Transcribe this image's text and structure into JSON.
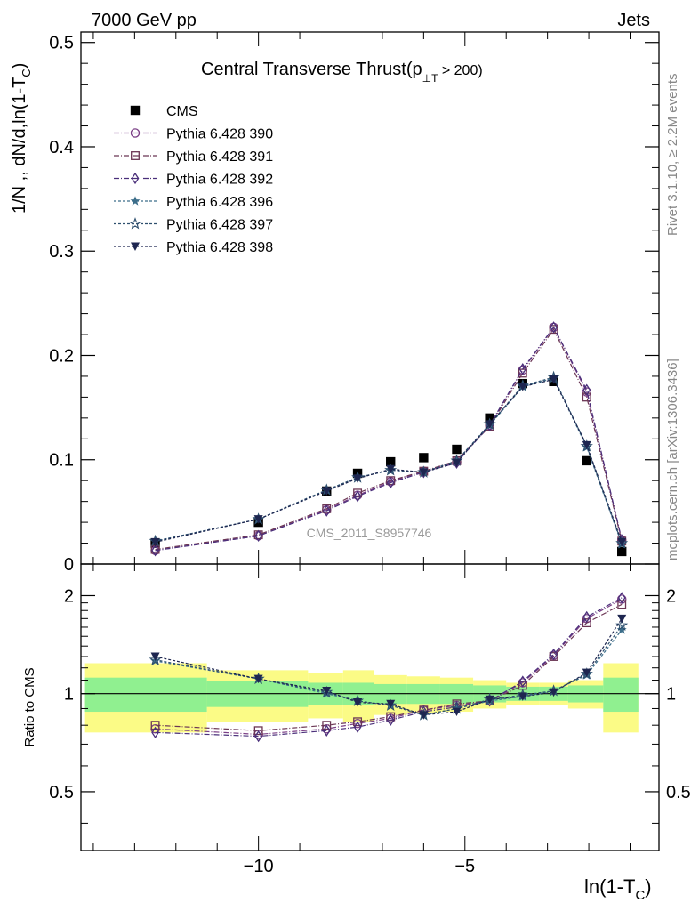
{
  "header": {
    "left": "7000 GeV pp",
    "right": "Jets"
  },
  "side_text": {
    "rivet": "Rivet 3.1.10, ≥ 2.2M events",
    "mcplots": "mcplots.cern.ch [arXiv:1306.3436]"
  },
  "watermark": "CMS_2011_S8957746",
  "chart_data": [
    {
      "type": "scatter",
      "panel": "main",
      "title": "Central Transverse Thrust(p",
      "title_sub": "⊥T",
      "title_tail": " > 200)",
      "ylabel": "1/N ,, dN/d,ln(1-T",
      "ylabel_sub": "C",
      "ylabel_tail": ")",
      "xlim": [
        -14.3,
        -0.3
      ],
      "ylim": [
        0,
        0.51
      ],
      "yticks": [
        0,
        0.1,
        0.2,
        0.3,
        0.4,
        0.5
      ],
      "ytick_labels": [
        "0",
        "0.1",
        "0.2",
        "0.3",
        "0.4",
        "0.5"
      ],
      "x": [
        -12.5,
        -10.0,
        -8.35,
        -7.6,
        -6.8,
        -6.0,
        -5.2,
        -4.4,
        -3.6,
        -2.85,
        -2.05,
        -1.2
      ],
      "legend_placement": "top-left",
      "series": [
        {
          "name": "CMS",
          "marker": "square-filled",
          "color": "#000000",
          "dash": "none",
          "values": [
            0.02,
            0.04,
            0.07,
            0.087,
            0.098,
            0.102,
            0.11,
            0.14,
            0.173,
            0.175,
            0.099,
            0.012
          ]
        },
        {
          "name": "Pythia 6.428 390",
          "marker": "circle-open",
          "color": "#7b3f86",
          "dash": "6,2,1,2",
          "values": [
            0.013,
            0.027,
            0.052,
            0.066,
            0.079,
            0.089,
            0.098,
            0.133,
            0.186,
            0.227,
            0.165,
            0.023
          ]
        },
        {
          "name": "Pythia 6.428 391",
          "marker": "square-open",
          "color": "#6b3654",
          "dash": "6,2,1,2",
          "values": [
            0.014,
            0.028,
            0.053,
            0.068,
            0.08,
            0.089,
            0.099,
            0.132,
            0.183,
            0.225,
            0.16,
            0.022
          ]
        },
        {
          "name": "Pythia 6.428 392",
          "marker": "diamond-open",
          "color": "#4a2f7a",
          "dash": "6,2,1,2",
          "values": [
            0.013,
            0.027,
            0.051,
            0.065,
            0.078,
            0.088,
            0.097,
            0.133,
            0.187,
            0.227,
            0.167,
            0.023
          ]
        },
        {
          "name": "Pythia 6.428 396",
          "marker": "star-filled",
          "color": "#3c6e8a",
          "dash": "3,2",
          "values": [
            0.022,
            0.043,
            0.071,
            0.083,
            0.09,
            0.088,
            0.099,
            0.133,
            0.17,
            0.178,
            0.112,
            0.019
          ]
        },
        {
          "name": "Pythia 6.428 397",
          "marker": "star-open",
          "color": "#2e4f6e",
          "dash": "3,2",
          "values": [
            0.022,
            0.043,
            0.071,
            0.083,
            0.09,
            0.088,
            0.099,
            0.134,
            0.171,
            0.179,
            0.113,
            0.02
          ]
        },
        {
          "name": "Pythia 6.428 398",
          "marker": "triangle-down-filled",
          "color": "#1e2650",
          "dash": "3,2",
          "values": [
            0.021,
            0.043,
            0.07,
            0.082,
            0.091,
            0.088,
            0.097,
            0.134,
            0.17,
            0.177,
            0.114,
            0.021
          ]
        }
      ]
    },
    {
      "type": "scatter",
      "panel": "ratio",
      "ylabel": "Ratio to CMS",
      "xlabel": "ln(1-T",
      "xlabel_sub": "C",
      "xlabel_tail": ")",
      "xlim": [
        -14.3,
        -0.3
      ],
      "ylim": [
        0.33,
        2.5
      ],
      "yscale": "log",
      "yticks": [
        0.5,
        1,
        2
      ],
      "ytick_labels": [
        "0.5",
        "1",
        "2"
      ],
      "xticks": [
        -10,
        -5
      ],
      "xtick_labels": [
        "−10",
        "−5"
      ],
      "x": [
        -12.5,
        -10.0,
        -8.35,
        -7.6,
        -6.8,
        -6.0,
        -5.2,
        -4.4,
        -3.6,
        -2.85,
        -2.05,
        -1.2
      ],
      "bins": [
        -14.2,
        -11.25,
        -8.8,
        -7.95,
        -7.2,
        -6.4,
        -5.6,
        -4.8,
        -4.0,
        -3.2,
        -2.5,
        -1.65,
        -0.8
      ],
      "band_inner": [
        0.12,
        0.09,
        0.08,
        0.08,
        0.07,
        0.07,
        0.07,
        0.06,
        0.05,
        0.05,
        0.06,
        0.12
      ],
      "band_outer": [
        0.24,
        0.18,
        0.16,
        0.18,
        0.14,
        0.13,
        0.12,
        0.1,
        0.08,
        0.08,
        0.1,
        0.24
      ],
      "band_colors": {
        "inner": "#90f090",
        "outer": "#fbfb86"
      },
      "series": [
        {
          "name": "Pythia 6.428 390",
          "marker": "circle-open",
          "color": "#7b3f86",
          "dash": "6,2,1,2",
          "values": [
            0.78,
            0.75,
            0.78,
            0.81,
            0.84,
            0.89,
            0.92,
            0.95,
            1.08,
            1.31,
            1.7,
            1.95
          ]
        },
        {
          "name": "Pythia 6.428 391",
          "marker": "square-open",
          "color": "#6b3654",
          "dash": "6,2,1,2",
          "values": [
            0.8,
            0.77,
            0.8,
            0.82,
            0.85,
            0.89,
            0.93,
            0.95,
            1.06,
            1.3,
            1.65,
            1.88
          ]
        },
        {
          "name": "Pythia 6.428 392",
          "marker": "diamond-open",
          "color": "#4a2f7a",
          "dash": "6,2,1,2",
          "values": [
            0.76,
            0.74,
            0.77,
            0.79,
            0.83,
            0.88,
            0.91,
            0.95,
            1.09,
            1.32,
            1.72,
            1.97
          ]
        },
        {
          "name": "Pythia 6.428 396",
          "marker": "star-filled",
          "color": "#3c6e8a",
          "dash": "3,2",
          "values": [
            1.26,
            1.11,
            1.0,
            0.95,
            0.92,
            0.86,
            0.9,
            0.95,
            0.98,
            1.02,
            1.14,
            1.57
          ]
        },
        {
          "name": "Pythia 6.428 397",
          "marker": "star-open",
          "color": "#2e4f6e",
          "dash": "3,2",
          "values": [
            1.27,
            1.11,
            1.01,
            0.95,
            0.92,
            0.86,
            0.9,
            0.96,
            0.99,
            1.02,
            1.15,
            1.62
          ]
        },
        {
          "name": "Pythia 6.428 398",
          "marker": "triangle-down-filled",
          "color": "#1e2650",
          "dash": "3,2",
          "values": [
            1.3,
            1.11,
            1.02,
            0.94,
            0.93,
            0.86,
            0.88,
            0.96,
            0.98,
            1.01,
            1.16,
            1.7
          ]
        }
      ]
    }
  ]
}
